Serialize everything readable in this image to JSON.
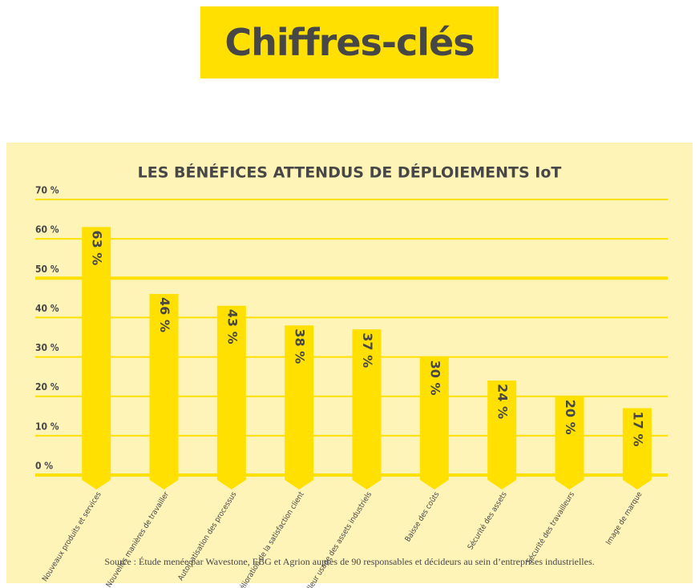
{
  "header": {
    "title": "Chiffres-clés"
  },
  "chart_data": {
    "type": "bar",
    "title": "LES BÉNÉFICES ATTENDUS DE DÉPLOIEMENTS IoT",
    "categories": [
      "Nouveaux produits et services",
      "Nouvelles manières de travailler",
      "Automatisation des processus",
      "Amélioration de la satisfaction client",
      "Meilleur usage des assets industriels",
      "Baisse des coûts",
      "Sécurité des assets",
      "Sécurité des travailleurs",
      "Image de marque"
    ],
    "values": [
      63,
      46,
      43,
      38,
      37,
      30,
      24,
      20,
      17
    ],
    "value_labels": [
      "63 %",
      "46 %",
      "43 %",
      "38 %",
      "37 %",
      "30 %",
      "24 %",
      "20 %",
      "17 %"
    ],
    "color": "#ffe000",
    "ylim": [
      0,
      70
    ],
    "yticks": [
      {
        "value": 0,
        "label": "0 %"
      },
      {
        "value": 10,
        "label": "10 %"
      },
      {
        "value": 20,
        "label": "20 %"
      },
      {
        "value": 30,
        "label": "30 %"
      },
      {
        "value": 40,
        "label": "40 %"
      },
      {
        "value": 50,
        "label": "50 %"
      },
      {
        "value": 60,
        "label": "60 %"
      },
      {
        "value": 70,
        "label": "70 %"
      }
    ],
    "grid": true,
    "source": "Source : Étude menée par Wavestone, EBG et Agrion auprès de 90 responsables et décideurs au sein d’entreprises industrielles."
  }
}
